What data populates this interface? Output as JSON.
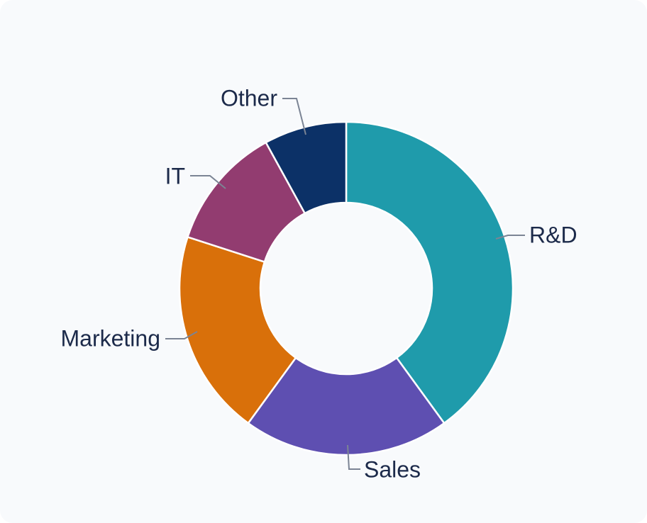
{
  "chart_data": {
    "type": "pie",
    "donut": true,
    "title": "",
    "categories": [
      "R&D",
      "Sales",
      "Marketing",
      "IT",
      "Other"
    ],
    "values": [
      40,
      20,
      20,
      12,
      8
    ],
    "colors": [
      "#1f9bab",
      "#5e4fb1",
      "#d9700a",
      "#923c70",
      "#0c3167"
    ],
    "legend": "none",
    "label_color": "#1c2a4a",
    "leader_color": "#7b8494"
  }
}
